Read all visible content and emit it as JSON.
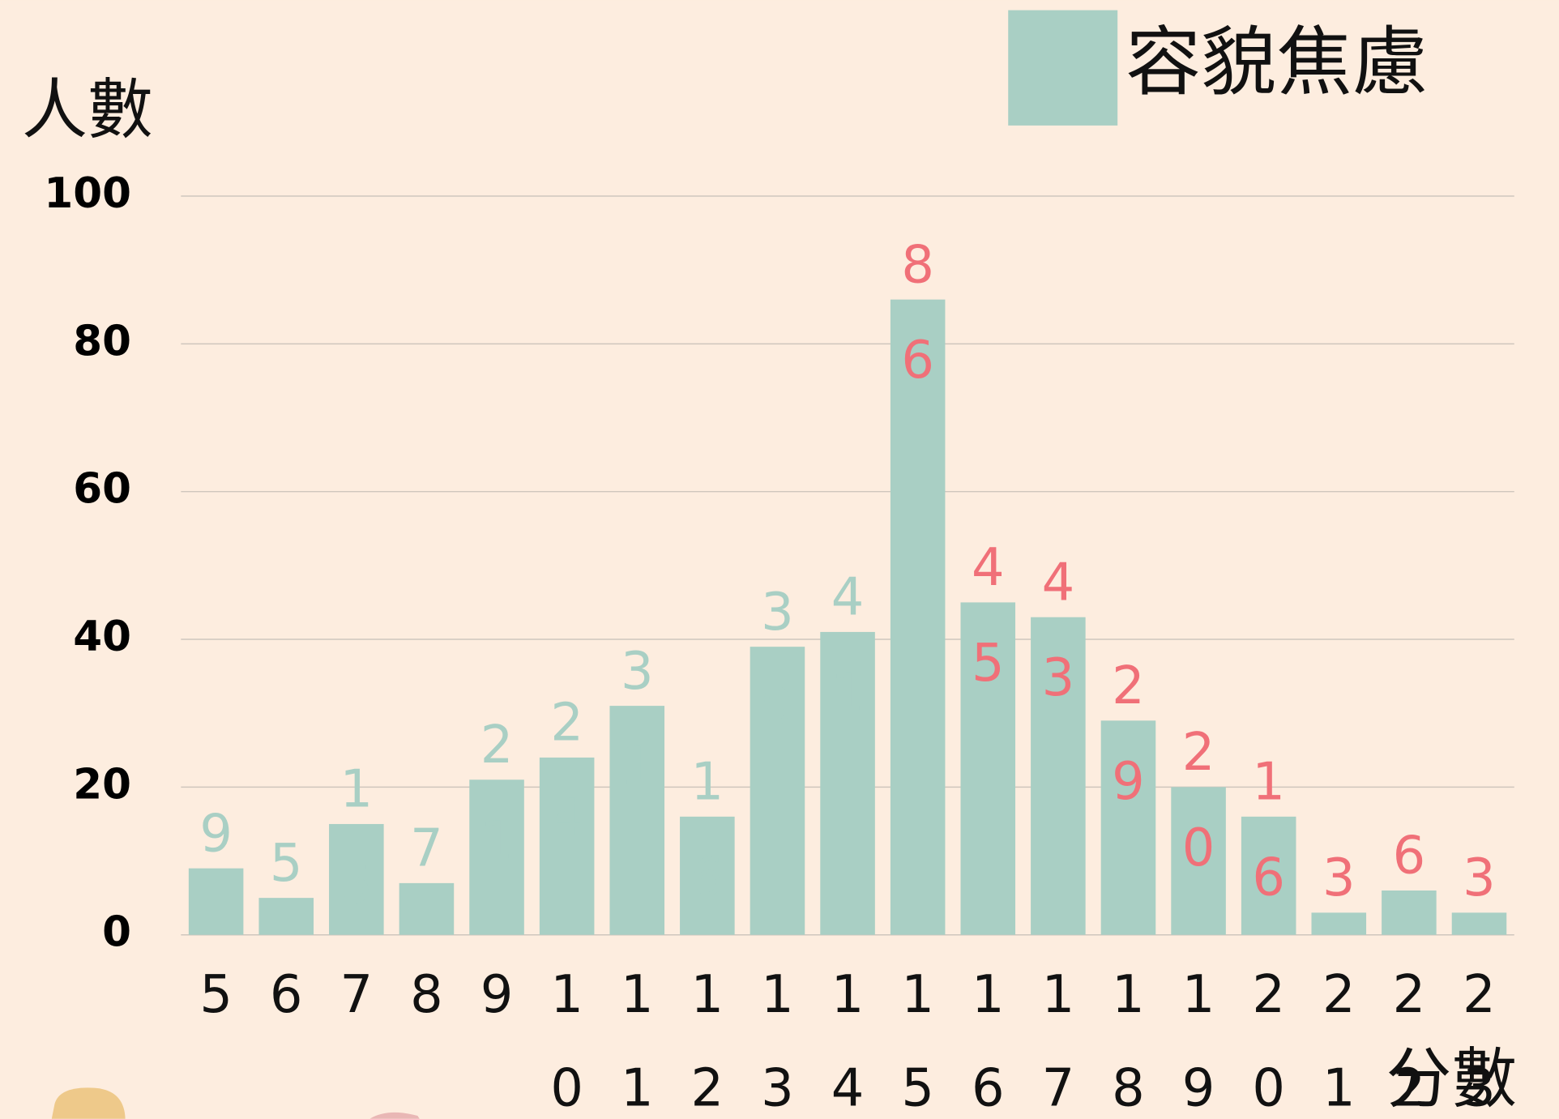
{
  "chart_data": {
    "type": "bar",
    "legend": "容貌焦慮",
    "y_label": "人數",
    "x_label": "分數",
    "categories": [
      "5",
      "6",
      "7",
      "8",
      "9",
      "10",
      "11",
      "12",
      "13",
      "14",
      "15",
      "16",
      "17",
      "18",
      "19",
      "20",
      "21",
      "22",
      "23"
    ],
    "values": [
      9,
      5,
      15,
      7,
      21,
      24,
      31,
      16,
      39,
      41,
      86,
      45,
      43,
      29,
      20,
      16,
      3,
      6,
      3
    ],
    "color": "#a9cfc4",
    "value_label_colors": [
      "#a9cfc4",
      "#a9cfc4",
      "#a9cfc4",
      "#a9cfc4",
      "#a9cfc4",
      "#a9cfc4",
      "#a9cfc4",
      "#a9cfc4",
      "#a9cfc4",
      "#a9cfc4",
      "#f07078",
      "#f07078",
      "#f07078",
      "#f07078",
      "#f07078",
      "#f07078",
      "#f07078",
      "#f07078",
      "#f07078"
    ],
    "ylim": [
      0,
      100
    ],
    "yticks": [
      0,
      20,
      40,
      60,
      80,
      100
    ],
    "grid": true
  }
}
